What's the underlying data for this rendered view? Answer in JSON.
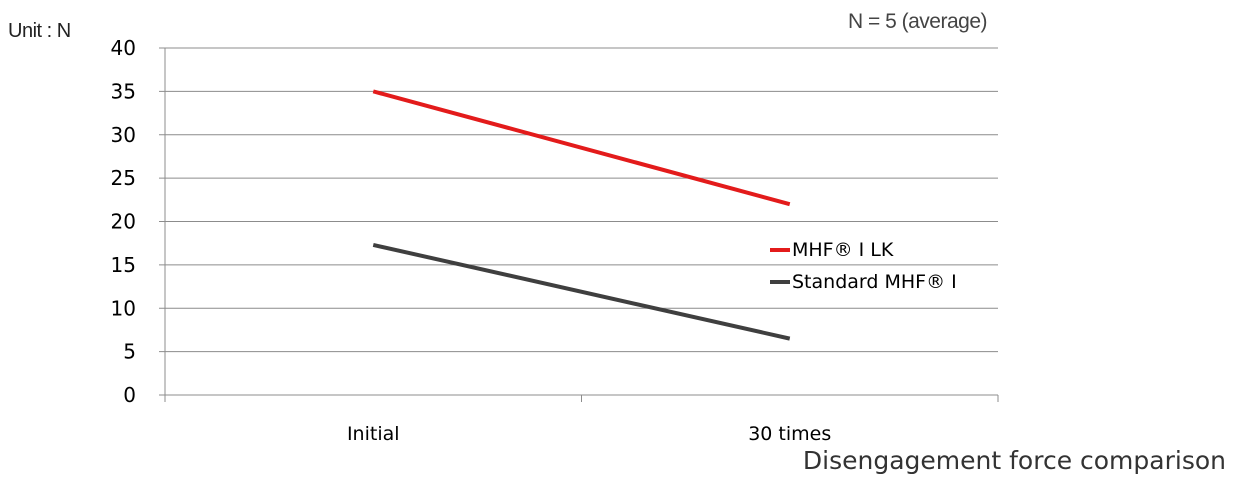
{
  "header": {
    "unit_label": "Unit : N",
    "note": "N = 5 (average)"
  },
  "caption": "Disengagement force comparison",
  "chart_data": {
    "type": "line",
    "title": "Disengagement force comparison",
    "xlabel": "",
    "ylabel": "Unit : N",
    "categories": [
      "Initial",
      "30 times"
    ],
    "ylim": [
      0,
      40
    ],
    "yticks": [
      0,
      5,
      10,
      15,
      20,
      25,
      30,
      35,
      40
    ],
    "grid": true,
    "legend_position": "right",
    "series": [
      {
        "name": "MHF® I LK",
        "values": [
          35,
          22
        ],
        "color": "#e31b1b"
      },
      {
        "name": "Standard MHF® I",
        "values": [
          17.3,
          6.5
        ],
        "color": "#3f3f3f"
      }
    ]
  }
}
